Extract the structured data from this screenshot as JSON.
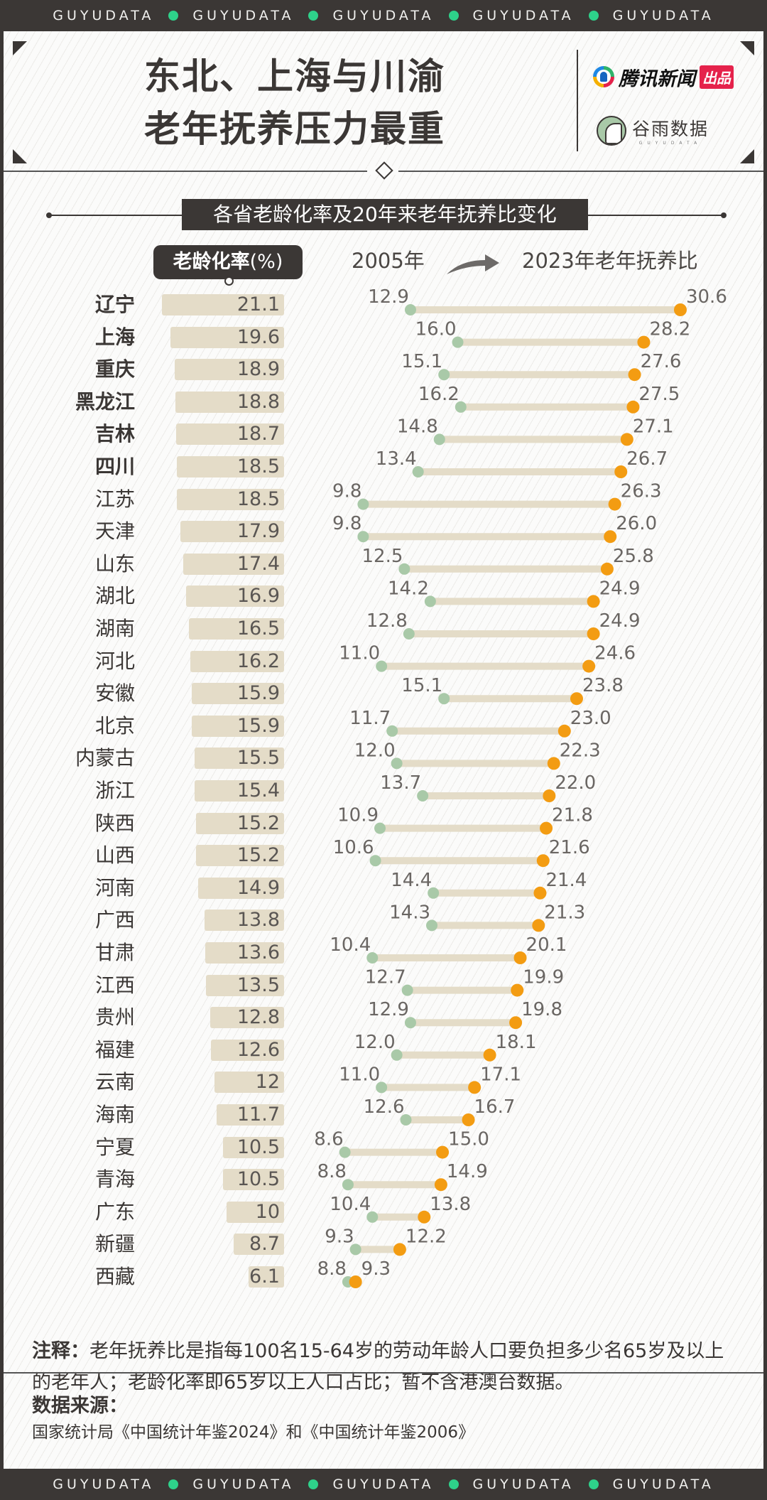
{
  "brand_band": {
    "word": "GUYUDATA",
    "repeat": 5
  },
  "header": {
    "title_line1": "东北、上海与川渝",
    "title_line2": "老年抚养压力最重",
    "publisher_logo": {
      "name": "腾讯新闻",
      "badge": "出品",
      "icon": "tencent-news-ring-icon"
    },
    "partner_logo": {
      "name": "谷雨数据",
      "sub": "GUYUDATA",
      "icon": "guyu-bird-icon"
    }
  },
  "colors": {
    "dark": "#3b3735",
    "bar": "#e4dcc8",
    "dot_2005": "#a9c9a8",
    "dot_2023": "#f39c12",
    "connector": "#e4dcc8",
    "band_dot": "#2ed18a",
    "tencent_red": "#e5224b"
  },
  "chart_data": {
    "type": "dumbbell+bar",
    "title": "各省老龄化率及20年来老年抚养比变化",
    "bar_header": "老龄化率",
    "bar_unit": "(%)",
    "legend": {
      "start": "2005年",
      "end": "2023年老年抚养比"
    },
    "highlighted_count": 6,
    "categories": [
      "辽宁",
      "上海",
      "重庆",
      "黑龙江",
      "吉林",
      "四川",
      "江苏",
      "天津",
      "山东",
      "湖北",
      "湖南",
      "河北",
      "安徽",
      "北京",
      "内蒙古",
      "浙江",
      "陕西",
      "山西",
      "河南",
      "广西",
      "甘肃",
      "江西",
      "贵州",
      "福建",
      "云南",
      "海南",
      "宁夏",
      "青海",
      "广东",
      "新疆",
      "西藏"
    ],
    "series": [
      {
        "name": "老龄化率(%)",
        "values": [
          "21.1",
          "19.6",
          "18.9",
          "18.8",
          "18.7",
          "18.5",
          "18.5",
          "17.9",
          "17.4",
          "16.9",
          "16.5",
          "16.2",
          "15.9",
          "15.9",
          "15.5",
          "15.4",
          "15.2",
          "15.2",
          "14.9",
          "13.8",
          "13.6",
          "13.5",
          "12.8",
          "12.6",
          "12",
          "11.7",
          "10.5",
          "10.5",
          "10",
          "8.7",
          "6.1"
        ]
      },
      {
        "name": "2005年老年抚养比",
        "values": [
          "12.9",
          "16.0",
          "15.1",
          "16.2",
          "14.8",
          "13.4",
          "9.8",
          "9.8",
          "12.5",
          "14.2",
          "12.8",
          "11.0",
          "15.1",
          "11.7",
          "12.0",
          "13.7",
          "10.9",
          "10.6",
          "14.4",
          "14.3",
          "10.4",
          "12.7",
          "12.9",
          "12.0",
          "11.0",
          "12.6",
          "8.6",
          "8.8",
          "10.4",
          "9.3",
          "8.8"
        ]
      },
      {
        "name": "2023年老年抚养比",
        "values": [
          "30.6",
          "28.2",
          "27.6",
          "27.5",
          "27.1",
          "26.7",
          "26.3",
          "26.0",
          "25.8",
          "24.9",
          "24.9",
          "24.6",
          "23.8",
          "23.0",
          "22.3",
          "22.0",
          "21.8",
          "21.6",
          "21.4",
          "21.3",
          "20.1",
          "19.9",
          "19.8",
          "18.1",
          "17.1",
          "16.7",
          "15.0",
          "14.9",
          "13.8",
          "12.2",
          "9.3"
        ]
      }
    ]
  },
  "note": {
    "label": "注释：",
    "text": "老年抚养比是指每100名15-64岁的劳动年龄人口要负担多少名65岁及以上的老年人；老龄化率即65岁以上人口占比；暂不含港澳台数据。"
  },
  "source": {
    "label": "数据来源：",
    "text": "国家统计局《中国统计年鉴2024》和《中国统计年鉴2006》"
  }
}
